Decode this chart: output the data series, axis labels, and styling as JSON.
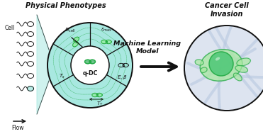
{
  "title_left": "Physical Phenotypes",
  "title_right": "Cancer Cell\nInvasion",
  "ml_label": "Machine Learning\nModel",
  "flow_label": "Flow",
  "cell_label": "Cell",
  "qdc_label": "q-DC",
  "bg_color": "#ffffff",
  "cyan_fill": "#a8e8e0",
  "cyan_mid": "#c5f0ea",
  "green_dark": "#2e8b57",
  "green_med": "#55bb77",
  "green_light": "#90ee90",
  "green_outline": "#22aa44",
  "gray_light": "#d0d8e8",
  "lavender_bg": "#dde4f0",
  "line_color": "#111111",
  "fiber_color": "#b8c8e0"
}
